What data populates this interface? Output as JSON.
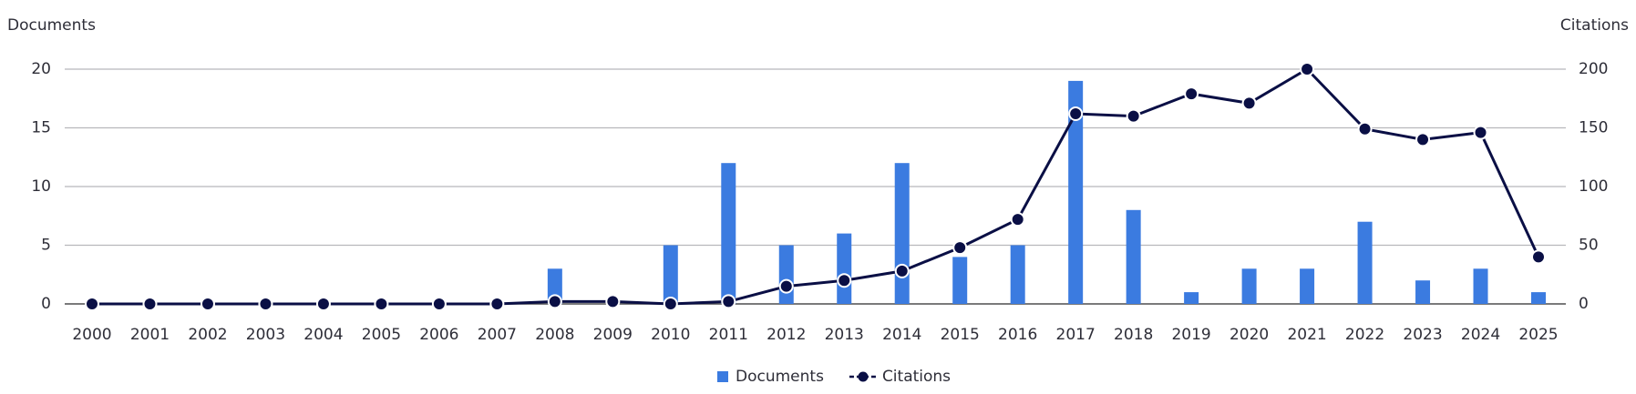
{
  "chart_data": {
    "type": "bar-line",
    "y_label": "Documents",
    "y2_label": "Citations",
    "categories": [
      "2000",
      "2001",
      "2002",
      "2003",
      "2004",
      "2005",
      "2006",
      "2007",
      "2008",
      "2009",
      "2010",
      "2011",
      "2012",
      "2013",
      "2014",
      "2015",
      "2016",
      "2017",
      "2018",
      "2019",
      "2020",
      "2021",
      "2022",
      "2023",
      "2024",
      "2025"
    ],
    "series": [
      {
        "name": "Documents",
        "kind": "bar",
        "color": "#3b7be0",
        "values": [
          0,
          0,
          0,
          0,
          0,
          0,
          0,
          0,
          3,
          0,
          5,
          12,
          5,
          6,
          12,
          4,
          5,
          19,
          8,
          1,
          3,
          3,
          7,
          2,
          3,
          1
        ]
      },
      {
        "name": "Citations",
        "kind": "line",
        "axis": "y2",
        "color": "#0a0f45",
        "values": [
          0,
          0,
          0,
          0,
          0,
          0,
          0,
          0,
          2,
          2,
          0,
          2,
          15,
          20,
          28,
          48,
          72,
          162,
          160,
          179,
          171,
          200,
          149,
          140,
          146,
          40
        ]
      }
    ],
    "ylim": [
      0,
      20
    ],
    "yticks": [
      0,
      5,
      10,
      15,
      20
    ],
    "y2lim": [
      0,
      200
    ],
    "y2ticks": [
      0,
      50,
      100,
      150,
      200
    ],
    "grid": true,
    "legend": "bottom"
  }
}
